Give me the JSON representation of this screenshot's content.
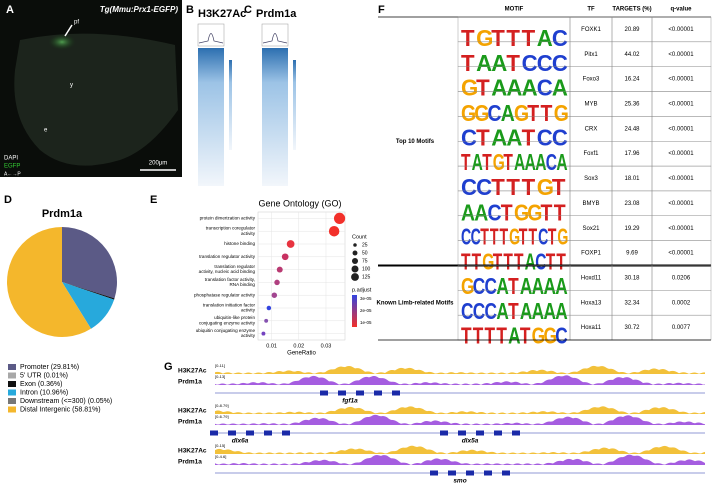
{
  "panel_a": {
    "letter": "A",
    "title": "Tg(Mmu:Prx1-EGFP)",
    "labels": [
      "pf",
      "y",
      "e"
    ],
    "legend": [
      "DAPI",
      "EGFP"
    ],
    "axis": "A←→P",
    "scale_bar": "200μm"
  },
  "panel_b": {
    "letter": "B",
    "title": "H3K27Ac"
  },
  "panel_c": {
    "letter": "C",
    "title": "Prdm1a"
  },
  "panel_d": {
    "letter": "D"
  },
  "panel_e": {
    "letter": "E"
  },
  "panel_f": {
    "letter": "F"
  },
  "panel_g": {
    "letter": "G"
  },
  "chart_data": [
    {
      "type": "pie",
      "title": "Prdm1a",
      "categories": [
        "Promoter (29.81%)",
        "5' UTR (0.01%)",
        "Exon (0.36%)",
        "Intron (10.96%)",
        "Downstream (<=300) (0.05%)",
        "Distal Intergenic (58.81%)"
      ],
      "values": [
        29.81,
        0.01,
        0.36,
        10.96,
        0.05,
        58.81
      ],
      "colors": [
        "#5b5a86",
        "#a8a8a8",
        "#111111",
        "#27a9dc",
        "#777777",
        "#f4b72c"
      ]
    },
    {
      "type": "dot",
      "title": "Gene Ontology (GO)",
      "xlabel": "GeneRatio",
      "categories": [
        "protein dimerization activity",
        "transcription coregulator activity",
        "histone binding",
        "translation regulator activity",
        "translation regulator activity, nucleic acid binding",
        "translation factor activity, RNA binding",
        "phosphatase regulator activity",
        "translation initiation factor activity",
        "ubiquitin-like protein conjugating enzyme activity",
        "ubiquitin conjugating enzyme activity"
      ],
      "values": [
        0.035,
        0.033,
        0.017,
        0.015,
        0.013,
        0.012,
        0.011,
        0.009,
        0.008,
        0.007
      ],
      "sizes": [
        125,
        110,
        60,
        45,
        35,
        30,
        30,
        20,
        15,
        15
      ],
      "colors": [
        "#f2302a",
        "#f2302a",
        "#e8333f",
        "#c83262",
        "#b93a72",
        "#b04080",
        "#a24690",
        "#3344e0",
        "#8552b0",
        "#7443c0"
      ],
      "xlim": [
        0.005,
        0.037
      ],
      "xticks": [
        0.01,
        0.02,
        0.03
      ],
      "grid": true,
      "size_title": "Count",
      "size_legend": [
        25,
        50,
        75,
        100,
        125
      ],
      "color_title": "p.adjust",
      "color_legend": [
        "3e-05",
        "2e-05",
        "1e-05"
      ]
    }
  ],
  "motif_table": {
    "header": [
      "MOTIF",
      "TF",
      "TARGETS (%)",
      "q-value"
    ],
    "groups": [
      {
        "label": "Top 10 Motifs",
        "rows": [
          {
            "motif": "TGTTTAC",
            "tf": "FOXK1",
            "targets": 20.89,
            "q": "<0.00001"
          },
          {
            "motif": "TAATCCC",
            "tf": "Pitx1",
            "targets": 44.02,
            "q": "<0.00001"
          },
          {
            "motif": "GTAAACA",
            "tf": "Foxo3",
            "targets": 16.24,
            "q": "<0.00001"
          },
          {
            "motif": "GGCAGTTG",
            "tf": "MYB",
            "targets": 25.36,
            "q": "<0.00001"
          },
          {
            "motif": "CTAATCC",
            "tf": "CRX",
            "targets": 24.48,
            "q": "<0.00001"
          },
          {
            "motif": "TATGTAAACA",
            "tf": "Foxf1",
            "targets": 17.96,
            "q": "<0.00001"
          },
          {
            "motif": "CCTTTGT",
            "tf": "Sox3",
            "targets": 18.01,
            "q": "<0.00001"
          },
          {
            "motif": "AACTGGTT",
            "tf": "BMYB",
            "targets": 23.08,
            "q": "<0.00001"
          },
          {
            "motif": "CCTTTGTTCTG",
            "tf": "Sox21",
            "targets": 19.29,
            "q": "<0.00001"
          },
          {
            "motif": "TTGTTTACTT",
            "tf": "FOXP1",
            "targets": 9.69,
            "q": "<0.00001"
          }
        ]
      },
      {
        "label": "Known Limb-related Motifs",
        "rows": [
          {
            "motif": "GCCATAAAA",
            "tf": "Hoxd11",
            "targets": 30.18,
            "q": 0.0206
          },
          {
            "motif": "CCCATAAAA",
            "tf": "Hoxa13",
            "targets": 32.34,
            "q": 0.0002
          },
          {
            "motif": "TTTTATGGC",
            "tf": "Hoxa11",
            "targets": 30.72,
            "q": 0.0077
          }
        ]
      }
    ]
  },
  "tracks": {
    "names": [
      "H3K27Ac",
      "Prdm1a"
    ],
    "loci": [
      {
        "ranges": [
          "[0-11]",
          "[0-13]"
        ],
        "genes": [
          "fgf1a"
        ]
      },
      {
        "ranges": [
          "[0-8.79]",
          "[0-6.79]"
        ],
        "genes": [
          "dlx6a",
          "dlx5a"
        ]
      },
      {
        "ranges": [
          "[0-15]",
          "[0-4.6]"
        ],
        "genes": [
          "smo"
        ]
      }
    ]
  }
}
